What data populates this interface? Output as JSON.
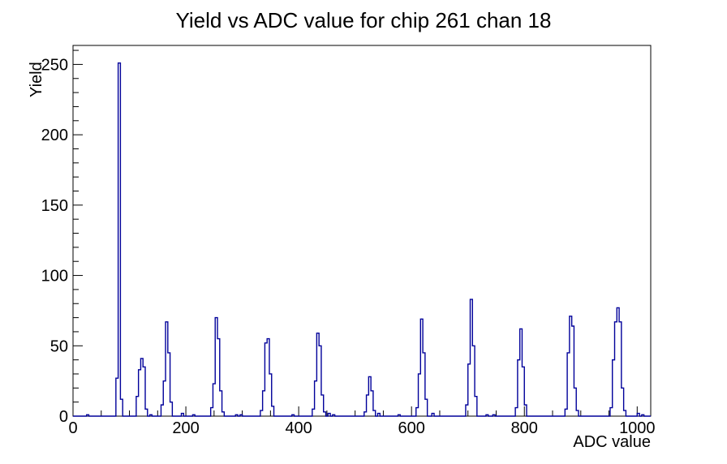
{
  "title": "Yield vs ADC value for chip 261 chan 18",
  "chart_data": {
    "type": "bar",
    "subtype": "step-histogram",
    "title": "Yield vs ADC value for chip 261 chan 18",
    "xlabel": "ADC value",
    "ylabel": "Yield",
    "xlim": [
      0,
      1024
    ],
    "ylim": [
      0,
      263.5
    ],
    "x_major_ticks": [
      0,
      200,
      400,
      600,
      800,
      1000
    ],
    "x_minor_step": 50,
    "x_minor_max": 1000,
    "y_major_ticks": [
      0,
      50,
      100,
      150,
      200,
      250
    ],
    "y_minor_step": 10,
    "y_minor_max": 260,
    "grid": false,
    "legend_position": "none",
    "line_color": "#00009a",
    "frame_color": "#000000",
    "background_color": "#ffffff",
    "bin_width": 4,
    "peaks": [
      {
        "adc": 82,
        "yield": 251
      },
      {
        "adc": 122,
        "yield": 41
      },
      {
        "adc": 165,
        "yield": 67
      },
      {
        "adc": 254,
        "yield": 70
      },
      {
        "adc": 344,
        "yield": 55
      },
      {
        "adc": 435,
        "yield": 59
      },
      {
        "adc": 525,
        "yield": 28
      },
      {
        "adc": 617,
        "yield": 69
      },
      {
        "adc": 706,
        "yield": 83
      },
      {
        "adc": 793,
        "yield": 62
      },
      {
        "adc": 882,
        "yield": 71
      },
      {
        "adc": 966,
        "yield": 77
      }
    ],
    "bins": [
      [
        24,
        1
      ],
      [
        76,
        27
      ],
      [
        80,
        251
      ],
      [
        84,
        12
      ],
      [
        112,
        14
      ],
      [
        116,
        33
      ],
      [
        120,
        41
      ],
      [
        124,
        35
      ],
      [
        128,
        5
      ],
      [
        136,
        1
      ],
      [
        156,
        8
      ],
      [
        160,
        25
      ],
      [
        164,
        67
      ],
      [
        168,
        45
      ],
      [
        172,
        10
      ],
      [
        192,
        2
      ],
      [
        212,
        1
      ],
      [
        244,
        6
      ],
      [
        248,
        23
      ],
      [
        252,
        70
      ],
      [
        256,
        55
      ],
      [
        260,
        18
      ],
      [
        264,
        3
      ],
      [
        288,
        1
      ],
      [
        296,
        1
      ],
      [
        332,
        4
      ],
      [
        336,
        18
      ],
      [
        340,
        52
      ],
      [
        344,
        55
      ],
      [
        348,
        30
      ],
      [
        352,
        7
      ],
      [
        388,
        1
      ],
      [
        424,
        5
      ],
      [
        428,
        25
      ],
      [
        432,
        59
      ],
      [
        436,
        50
      ],
      [
        440,
        15
      ],
      [
        444,
        3
      ],
      [
        452,
        2
      ],
      [
        460,
        1
      ],
      [
        516,
        3
      ],
      [
        520,
        15
      ],
      [
        524,
        28
      ],
      [
        528,
        18
      ],
      [
        532,
        4
      ],
      [
        540,
        2
      ],
      [
        576,
        1
      ],
      [
        608,
        6
      ],
      [
        612,
        30
      ],
      [
        616,
        69
      ],
      [
        620,
        45
      ],
      [
        624,
        12
      ],
      [
        636,
        2
      ],
      [
        696,
        8
      ],
      [
        700,
        37
      ],
      [
        704,
        83
      ],
      [
        708,
        50
      ],
      [
        712,
        14
      ],
      [
        732,
        1
      ],
      [
        744,
        1
      ],
      [
        784,
        6
      ],
      [
        788,
        40
      ],
      [
        792,
        62
      ],
      [
        796,
        35
      ],
      [
        800,
        8
      ],
      [
        872,
        5
      ],
      [
        876,
        45
      ],
      [
        880,
        71
      ],
      [
        884,
        64
      ],
      [
        888,
        20
      ],
      [
        892,
        4
      ],
      [
        952,
        6
      ],
      [
        956,
        40
      ],
      [
        960,
        67
      ],
      [
        964,
        77
      ],
      [
        968,
        67
      ],
      [
        972,
        20
      ],
      [
        976,
        4
      ],
      [
        1000,
        2
      ],
      [
        1008,
        1
      ]
    ]
  }
}
